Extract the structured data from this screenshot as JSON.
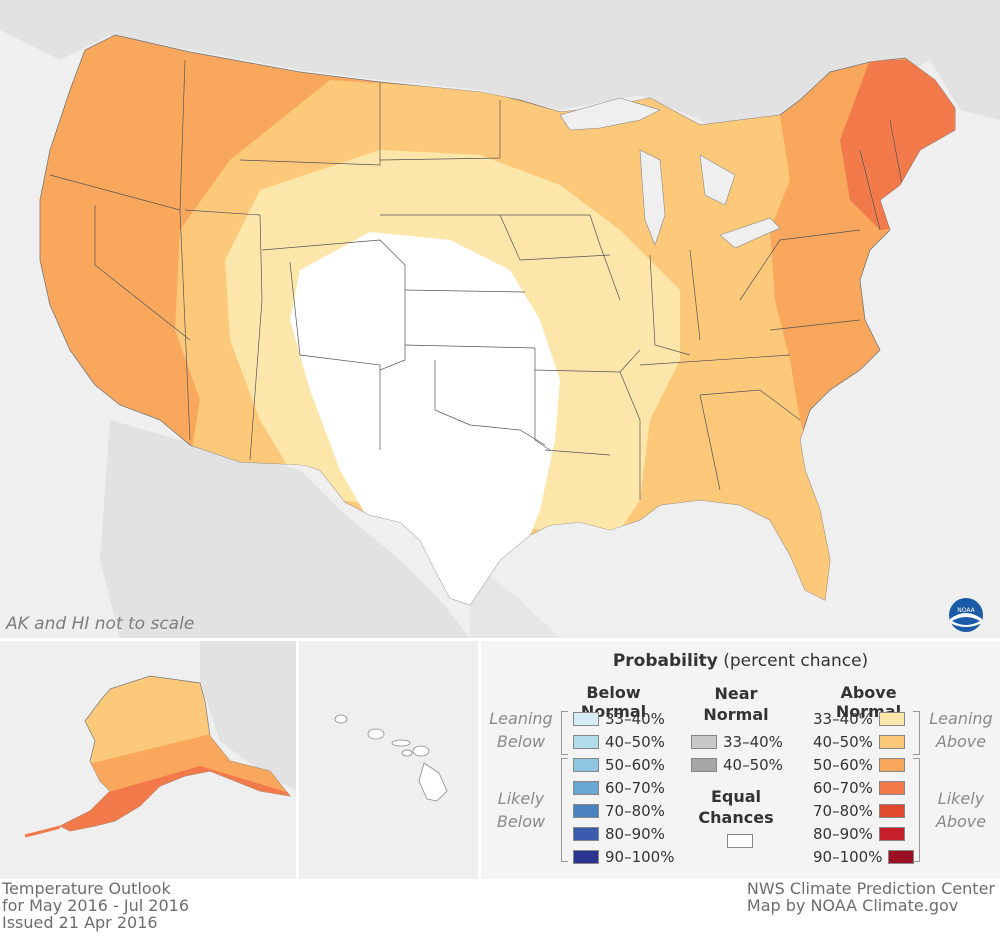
{
  "map": {
    "note": "AK and HI not to scale",
    "logo_icon": "noaa-logo-icon"
  },
  "legend": {
    "title_bold": "Probability",
    "title_rest": " (percent chance)",
    "below": {
      "heading": "Below Normal",
      "leaning_label_1": "Leaning",
      "leaning_label_2": "Below",
      "likely_label_1": "Likely",
      "likely_label_2": "Below",
      "items": [
        {
          "label": "33–40%",
          "color": "#d5ecf5"
        },
        {
          "label": "40–50%",
          "color": "#b2dbea"
        },
        {
          "label": "50–60%",
          "color": "#8ec5e0"
        },
        {
          "label": "60–70%",
          "color": "#69a6d2"
        },
        {
          "label": "70–80%",
          "color": "#4a82c0"
        },
        {
          "label": "80–90%",
          "color": "#3a5bae"
        },
        {
          "label": "90–100%",
          "color": "#2b3591"
        }
      ]
    },
    "near": {
      "heading_1": "Near",
      "heading_2": "Normal",
      "items": [
        {
          "label": "33–40%",
          "color": "#c8c8c8"
        },
        {
          "label": "40–50%",
          "color": "#a6a6a6"
        }
      ],
      "equal_1": "Equal",
      "equal_2": "Chances",
      "equal_color": "#ffffff"
    },
    "above": {
      "heading": "Above Normal",
      "leaning_label_1": "Leaning",
      "leaning_label_2": "Above",
      "likely_label_1": "Likely",
      "likely_label_2": "Above",
      "items": [
        {
          "label": "33–40%",
          "color": "#fde6a9"
        },
        {
          "label": "40–50%",
          "color": "#fcc97b"
        },
        {
          "label": "50–60%",
          "color": "#f9a75c"
        },
        {
          "label": "60–70%",
          "color": "#f2794a"
        },
        {
          "label": "70–80%",
          "color": "#e1492f"
        },
        {
          "label": "80–90%",
          "color": "#c6202a"
        },
        {
          "label": "90–100%",
          "color": "#9a0f23"
        }
      ]
    }
  },
  "footer": {
    "left_1": "Temperature Outlook",
    "left_2": "for May 2016 - Jul 2016",
    "left_3": "Issued 21 Apr 2016",
    "right_1": "NWS Climate Prediction Center",
    "right_2": "Map by NOAA Climate.gov"
  },
  "colors": {
    "background_land": "#e2e2e2",
    "water": "#efefef",
    "lean_above": "#fde6a9",
    "above_40_50": "#fcc97b",
    "above_50_60": "#f9a75c",
    "above_60_70": "#f2794a",
    "equal_chances": "#ffffff"
  }
}
